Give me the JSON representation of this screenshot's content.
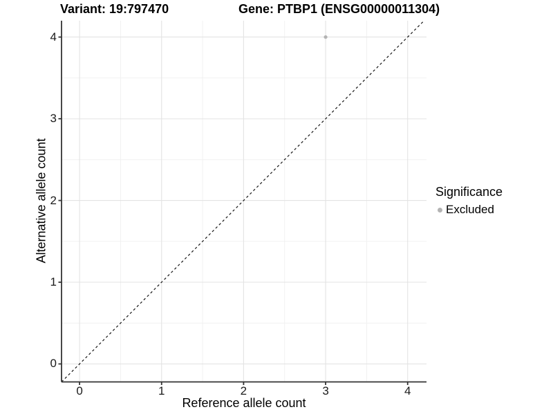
{
  "titles": {
    "variant": "Variant: 19:797470",
    "gene": "Gene: PTBP1 (ENSG00000011304)"
  },
  "axes": {
    "x_label": "Reference allele count",
    "y_label": "Alternative allele count",
    "x_tick_labels": [
      "0",
      "1",
      "2",
      "3",
      "4"
    ],
    "y_tick_labels": [
      "0",
      "1",
      "2",
      "3",
      "4"
    ]
  },
  "legend": {
    "title": "Significance",
    "items": [
      {
        "label": "Excluded",
        "color": "#b3b3b3"
      }
    ]
  },
  "chart_data": {
    "type": "scatter",
    "title": "Variant: 19:797470    Gene: PTBP1 (ENSG00000011304)",
    "xlabel": "Reference allele count",
    "ylabel": "Alternative allele count",
    "xlim": [
      -0.22,
      4.23
    ],
    "ylim": [
      -0.22,
      4.2
    ],
    "x_ticks": [
      0,
      1,
      2,
      3,
      4
    ],
    "y_ticks": [
      0,
      1,
      2,
      3,
      4
    ],
    "x_minor_ticks": [
      0.5,
      1.5,
      2.5,
      3.5
    ],
    "y_minor_ticks": [
      0.5,
      1.5,
      2.5,
      3.5
    ],
    "series": [
      {
        "name": "Excluded",
        "color": "#b3b3b3",
        "points": [
          {
            "x": 3,
            "y": 4
          }
        ]
      }
    ],
    "reference_line": {
      "type": "identity",
      "slope": 1,
      "intercept": 0,
      "style": "dashed",
      "color": "#141414"
    },
    "grid": {
      "on": true,
      "major_color": "#e3e3e3",
      "minor_color": "#f1f1f1"
    },
    "axis_color": "#333333",
    "legend_position": "right",
    "legend_title": "Significance"
  }
}
